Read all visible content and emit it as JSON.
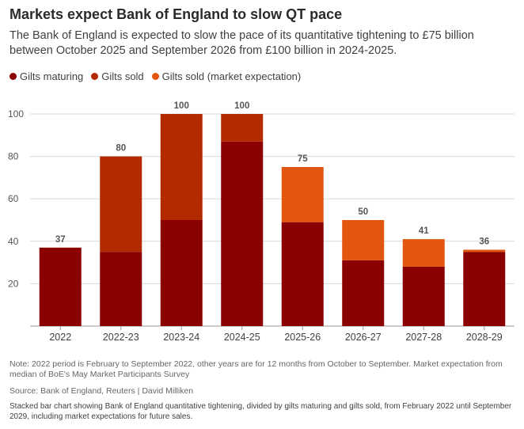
{
  "title": "Markets expect Bank of England to slow QT pace",
  "subtitle": "The Bank of England is expected to slow the pace of its quantitative tightening to £75 billion between October 2025 and September 2026 from £100 billion in 2024-2025.",
  "note": "Note: 2022 period is February to September 2022, other years are for 12 months from October to September. Market expectation from median of BoE's May Market Participants Survey",
  "source": "Source: Bank of England, Reuters | David Milliken",
  "alt_text": "Stacked bar chart showing Bank of England quantitative tightening, divided by gilts maturing and gilts sold, from February 2022 until September 2029, including market expectations for future sales.",
  "colors": {
    "gilts_maturing": "#8b0000",
    "gilts_sold": "#b32a00",
    "gilts_sold_expectation": "#e3560f"
  },
  "chart_data": {
    "type": "bar",
    "stacked": true,
    "categories": [
      "2022",
      "2022-23",
      "2023-24",
      "2024-25",
      "2025-26",
      "2026-27",
      "2027-28",
      "2028-29"
    ],
    "series": [
      {
        "name": "Gilts maturing",
        "color": "#8b0000",
        "values": [
          37,
          35,
          50,
          87,
          49,
          31,
          28,
          35
        ]
      },
      {
        "name": "Gilts sold",
        "color": "#b32a00",
        "values": [
          0,
          45,
          50,
          13,
          0,
          0,
          0,
          0
        ]
      },
      {
        "name": "Gilts sold (market expectation)",
        "color": "#e3560f",
        "values": [
          0,
          0,
          0,
          0,
          26,
          19,
          13,
          1
        ]
      }
    ],
    "totals": [
      37,
      80,
      100,
      100,
      75,
      50,
      41,
      36
    ],
    "ylim": [
      0,
      100
    ],
    "yticks": [
      20,
      40,
      60,
      80,
      100
    ],
    "grid": true,
    "legend_position": "top-left"
  }
}
